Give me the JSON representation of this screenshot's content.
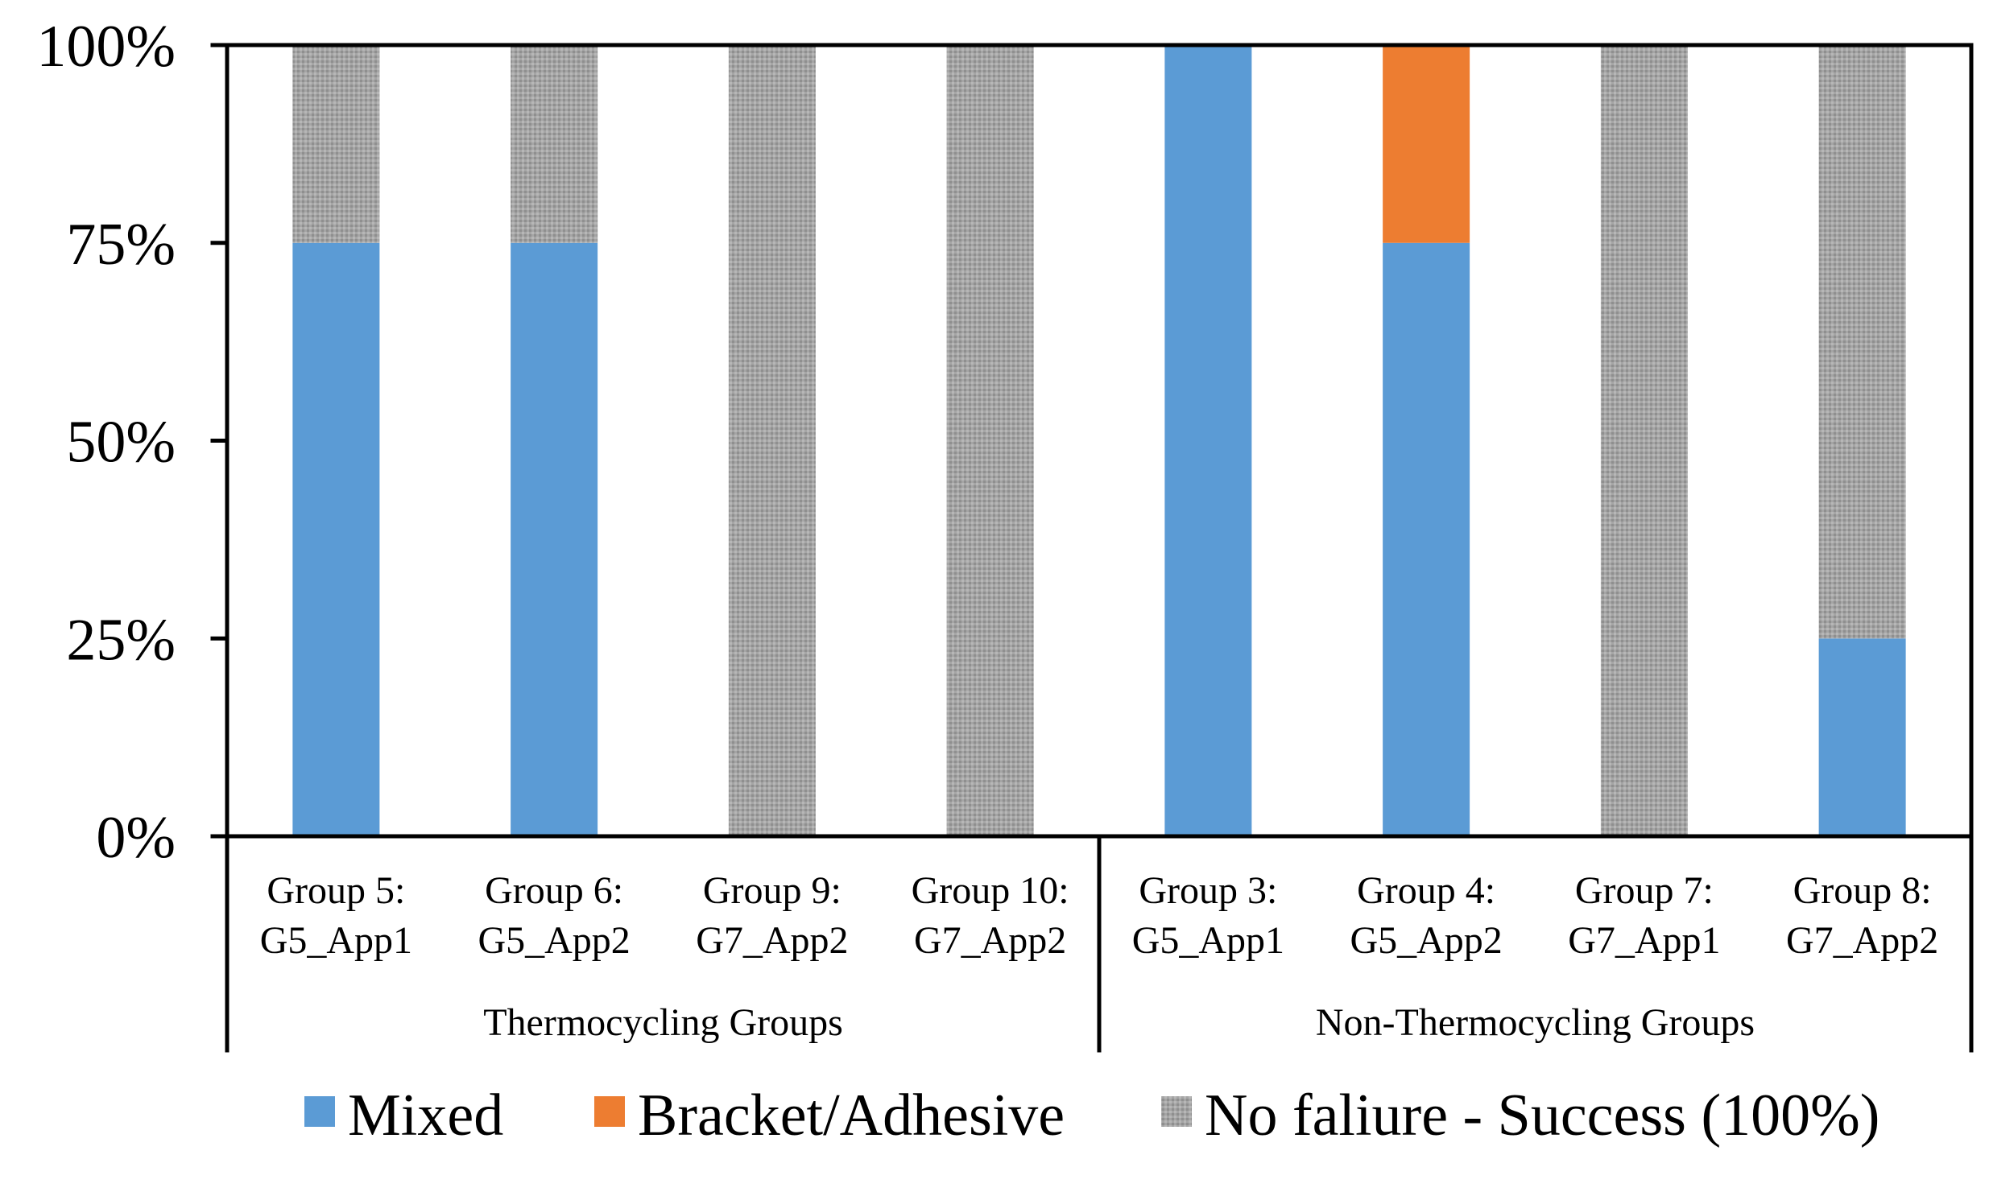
{
  "chart_data": {
    "type": "bar",
    "stacked": true,
    "percent_scale": true,
    "categories": [
      [
        "Group 5:",
        "G5_App1"
      ],
      [
        "Group 6:",
        "G5_App2"
      ],
      [
        "Group 9:",
        "G7_App2"
      ],
      [
        "Group 10:",
        "G7_App2"
      ],
      [
        "Group 3:",
        "G5_App1"
      ],
      [
        "Group 4:",
        "G5_App2"
      ],
      [
        "Group 7:",
        "G7_App1"
      ],
      [
        "Group 8:",
        "G7_App2"
      ]
    ],
    "category_groups": [
      {
        "label": "Thermocycling Groups",
        "count": 4
      },
      {
        "label": "Non-Thermocycling Groups",
        "count": 4
      }
    ],
    "series": [
      {
        "name": "Mixed",
        "color": "#5b9bd5",
        "values": [
          75,
          75,
          0,
          0,
          100,
          75,
          0,
          25
        ]
      },
      {
        "name": "Bracket/Adhesive",
        "color": "#ed7d31",
        "values": [
          0,
          0,
          0,
          0,
          0,
          25,
          0,
          0
        ]
      },
      {
        "name": "No faliure - Success (100%)",
        "color": "#a5a5a5",
        "pattern": "dotted-gray",
        "values": [
          25,
          25,
          100,
          100,
          0,
          0,
          100,
          75
        ]
      }
    ],
    "yticks": [
      "0%",
      "25%",
      "50%",
      "75%",
      "100%"
    ],
    "ylim": [
      0,
      100
    ],
    "grid": false,
    "legend_position": "bottom",
    "title": "",
    "xlabel": "",
    "ylabel": ""
  }
}
